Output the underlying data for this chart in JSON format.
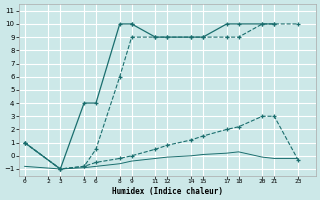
{
  "xlabel": "Humidex (Indice chaleur)",
  "bg_color": "#cce8e8",
  "grid_color": "#ffffff",
  "line_color": "#1a6e6e",
  "line1": {
    "x": [
      0,
      3,
      5,
      6,
      8,
      9
    ],
    "y": [
      1,
      -1,
      4,
      4,
      10,
      10
    ],
    "style": "-",
    "marker": "+"
  },
  "line2": {
    "x": [
      9,
      11,
      12,
      14,
      15,
      17,
      18,
      20,
      21
    ],
    "y": [
      10,
      9,
      9,
      9,
      9,
      10,
      10,
      10,
      10
    ],
    "style": "-",
    "marker": "+"
  },
  "line3": {
    "x": [
      0,
      3,
      5,
      6,
      8,
      9,
      11,
      12,
      14,
      15,
      17,
      18,
      20,
      21,
      23
    ],
    "y": [
      1,
      -1,
      -0.8,
      0.5,
      6,
      9,
      9,
      9,
      9,
      9,
      9,
      9,
      10,
      10,
      10
    ],
    "style": "--",
    "marker": "+"
  },
  "line4": {
    "x": [
      0,
      3,
      5,
      6,
      8,
      9,
      11,
      12,
      14,
      15,
      17,
      18,
      20,
      21,
      23
    ],
    "y": [
      1,
      -1,
      -0.8,
      -0.5,
      -0.2,
      0.0,
      0.5,
      0.8,
      1.2,
      1.5,
      2.0,
      2.2,
      3.0,
      3.0,
      -0.3
    ],
    "style": "--",
    "marker": "+"
  },
  "line5": {
    "x": [
      0,
      3,
      5,
      6,
      8,
      9,
      11,
      12,
      14,
      15,
      17,
      18,
      20,
      21,
      23
    ],
    "y": [
      -0.8,
      -1,
      -0.9,
      -0.8,
      -0.6,
      -0.4,
      -0.2,
      -0.1,
      0.0,
      0.1,
      0.2,
      0.3,
      -0.1,
      -0.2,
      -0.2
    ],
    "style": "-",
    "marker": null
  },
  "xlim": [
    -0.5,
    24.5
  ],
  "ylim": [
    -1.5,
    11.5
  ],
  "yticks": [
    -1,
    0,
    1,
    2,
    3,
    4,
    5,
    6,
    7,
    8,
    9,
    10,
    11
  ],
  "xtick_positions": [
    0,
    2,
    3,
    5,
    6,
    8,
    9,
    11,
    12,
    14,
    15,
    17,
    18,
    20,
    21,
    23
  ],
  "xtick_labels": [
    "0",
    "2",
    "3",
    "5",
    "6",
    "8",
    "9",
    "11",
    "12",
    "14",
    "15",
    "17",
    "18",
    "20",
    "21",
    "23"
  ]
}
